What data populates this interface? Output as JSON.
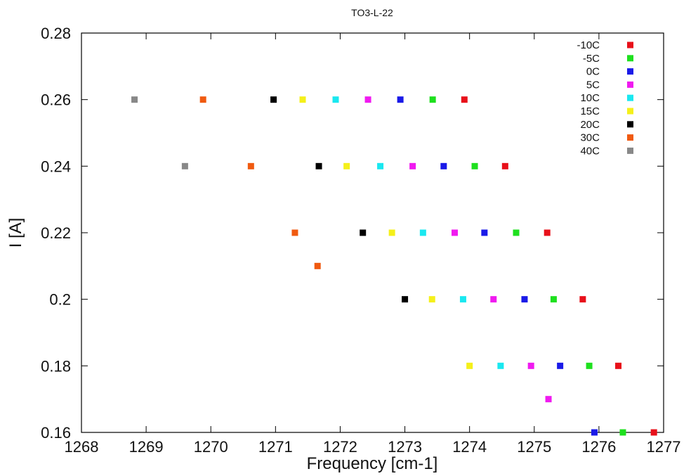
{
  "chart_data": {
    "type": "scatter",
    "title": "TO3-L-22",
    "xlabel": "Frequency [cm-1]",
    "ylabel": "I [A]",
    "xlim": [
      1268,
      1277
    ],
    "ylim": [
      0.16,
      0.28
    ],
    "xticks": [
      "1268",
      "1269",
      "1270",
      "1271",
      "1272",
      "1273",
      "1274",
      "1275",
      "1276",
      "1277"
    ],
    "yticks": [
      "0.16",
      "0.18",
      "0.2",
      "0.22",
      "0.24",
      "0.26",
      "0.28"
    ],
    "grid": false,
    "legend_position": "top-right",
    "series": [
      {
        "name": "-10C",
        "color": "#e8101a",
        "points": [
          [
            1273.92,
            0.26
          ],
          [
            1274.55,
            0.24
          ],
          [
            1275.2,
            0.22
          ],
          [
            1275.75,
            0.2
          ],
          [
            1276.3,
            0.18
          ],
          [
            1276.85,
            0.16
          ]
        ]
      },
      {
        "name": "-5C",
        "color": "#1ee01e",
        "points": [
          [
            1273.43,
            0.26
          ],
          [
            1274.08,
            0.24
          ],
          [
            1274.72,
            0.22
          ],
          [
            1275.3,
            0.2
          ],
          [
            1275.85,
            0.18
          ],
          [
            1276.37,
            0.16
          ]
        ]
      },
      {
        "name": "0C",
        "color": "#1a1ae8",
        "points": [
          [
            1272.93,
            0.26
          ],
          [
            1273.6,
            0.24
          ],
          [
            1274.23,
            0.22
          ],
          [
            1274.85,
            0.2
          ],
          [
            1275.4,
            0.18
          ],
          [
            1275.93,
            0.16
          ]
        ]
      },
      {
        "name": "5C",
        "color": "#f01af0",
        "points": [
          [
            1272.43,
            0.26
          ],
          [
            1273.12,
            0.24
          ],
          [
            1273.77,
            0.22
          ],
          [
            1274.37,
            0.2
          ],
          [
            1274.95,
            0.18
          ],
          [
            1275.22,
            0.17
          ]
        ]
      },
      {
        "name": "10C",
        "color": "#1ae8f0",
        "points": [
          [
            1271.93,
            0.26
          ],
          [
            1272.62,
            0.24
          ],
          [
            1273.28,
            0.22
          ],
          [
            1273.9,
            0.2
          ],
          [
            1274.48,
            0.18
          ]
        ]
      },
      {
        "name": "15C",
        "color": "#f5f01a",
        "points": [
          [
            1271.42,
            0.26
          ],
          [
            1272.1,
            0.24
          ],
          [
            1272.8,
            0.22
          ],
          [
            1273.42,
            0.2
          ],
          [
            1274.0,
            0.18
          ]
        ]
      },
      {
        "name": "20C",
        "color": "#000000",
        "points": [
          [
            1270.97,
            0.26
          ],
          [
            1271.67,
            0.24
          ],
          [
            1272.35,
            0.22
          ],
          [
            1273.0,
            0.2
          ]
        ]
      },
      {
        "name": "30C",
        "color": "#f05a10",
        "points": [
          [
            1269.88,
            0.26
          ],
          [
            1270.62,
            0.24
          ],
          [
            1271.3,
            0.22
          ],
          [
            1271.65,
            0.21
          ]
        ]
      },
      {
        "name": "40C",
        "color": "#888888",
        "points": [
          [
            1268.82,
            0.26
          ],
          [
            1269.6,
            0.24
          ]
        ]
      }
    ]
  }
}
